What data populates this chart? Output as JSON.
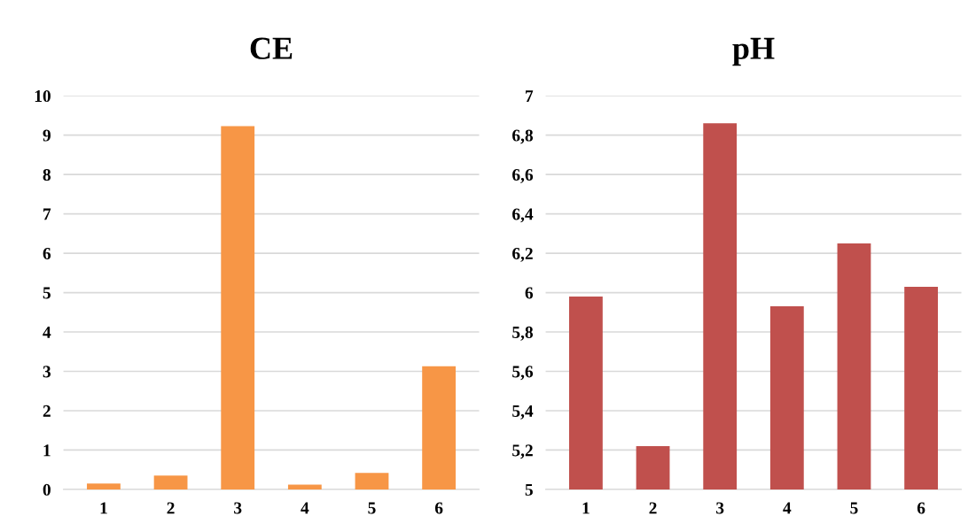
{
  "chart_data": [
    {
      "type": "bar",
      "title": "CE",
      "categories": [
        "1",
        "2",
        "3",
        "4",
        "5",
        "6"
      ],
      "values": [
        0.15,
        0.35,
        9.23,
        0.12,
        0.42,
        3.13
      ],
      "color": "#f79646",
      "ylim": [
        0,
        10
      ],
      "yticks": [
        0,
        1,
        2,
        3,
        4,
        5,
        6,
        7,
        8,
        9,
        10
      ],
      "grid": "y"
    },
    {
      "type": "bar",
      "title": "pH",
      "categories": [
        "1",
        "2",
        "3",
        "4",
        "5",
        "6"
      ],
      "values": [
        5.98,
        5.22,
        6.86,
        5.93,
        6.25,
        6.03
      ],
      "color": "#c0504d",
      "ylim": [
        5,
        7
      ],
      "yticks": [
        5,
        {
          "value": 5.2,
          "label": "5,2"
        },
        {
          "value": 5.4,
          "label": "5,4"
        },
        {
          "value": 5.6,
          "label": "5,6"
        },
        {
          "value": 5.8,
          "label": "5,8"
        },
        6,
        {
          "value": 6.2,
          "label": "6,2"
        },
        {
          "value": 6.4,
          "label": "6,4"
        },
        {
          "value": 6.6,
          "label": "6,6"
        },
        {
          "value": 6.8,
          "label": "6,8"
        },
        7
      ],
      "grid": "y"
    }
  ]
}
